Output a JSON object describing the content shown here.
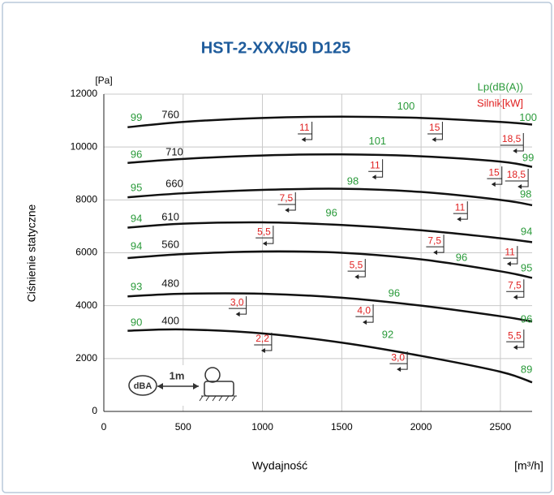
{
  "chart_data": {
    "type": "line",
    "title": "HST-2-XXX/50 D125",
    "y_unit": "[Pa]",
    "ylabel": "Ciśnienie statyczne",
    "xlabel": "Wydajność",
    "x_unit": "[m³/h]",
    "legend": [
      {
        "text": "Lp(dB(A))",
        "color": "#2a9a3a"
      },
      {
        "text": "Silnik[kW]",
        "color": "#e02020"
      }
    ],
    "xlim": [
      0,
      2700
    ],
    "xticks": [
      0,
      500,
      1000,
      1500,
      2000,
      2500
    ],
    "ylim": [
      0,
      12000
    ],
    "yticks": [
      0,
      2000,
      4000,
      6000,
      8000,
      10000,
      12000
    ],
    "grid": true,
    "line_color": "#111111",
    "x": [
      150,
      500,
      1000,
      1500,
      2000,
      2500,
      2700
    ],
    "series": [
      {
        "values": [
          10750,
          10950,
          11100,
          11150,
          11100,
          10950,
          10850
        ]
      },
      {
        "values": [
          9400,
          9550,
          9680,
          9720,
          9650,
          9450,
          9250
        ]
      },
      {
        "values": [
          8100,
          8250,
          8380,
          8420,
          8300,
          8000,
          7800
        ]
      },
      {
        "values": [
          6950,
          7100,
          7150,
          7050,
          6850,
          6550,
          6400
        ]
      },
      {
        "values": [
          5800,
          5950,
          6050,
          6000,
          5750,
          5300,
          5050
        ]
      },
      {
        "values": [
          4350,
          4450,
          4450,
          4300,
          4000,
          3600,
          3400
        ]
      },
      {
        "values": [
          3050,
          3100,
          2950,
          2600,
          2100,
          1500,
          1100
        ]
      }
    ],
    "speed_labels": {
      "color": "#111111",
      "items": [
        {
          "text": "760",
          "x": 420,
          "y": 11200
        },
        {
          "text": "710",
          "x": 445,
          "y": 9790
        },
        {
          "text": "660",
          "x": 445,
          "y": 8590
        },
        {
          "text": "610",
          "x": 420,
          "y": 7330
        },
        {
          "text": "560",
          "x": 420,
          "y": 6290
        },
        {
          "text": "480",
          "x": 420,
          "y": 4820
        },
        {
          "text": "400",
          "x": 420,
          "y": 3400
        }
      ]
    },
    "db_labels": {
      "color": "#2a9a3a",
      "items": [
        {
          "text": "99",
          "x": 205,
          "y": 11100
        },
        {
          "text": "96",
          "x": 205,
          "y": 9690
        },
        {
          "text": "95",
          "x": 205,
          "y": 8440
        },
        {
          "text": "94",
          "x": 205,
          "y": 7270
        },
        {
          "text": "94",
          "x": 205,
          "y": 6230
        },
        {
          "text": "93",
          "x": 205,
          "y": 4690
        },
        {
          "text": "90",
          "x": 205,
          "y": 3340
        },
        {
          "text": "100",
          "x": 1905,
          "y": 11530
        },
        {
          "text": "100",
          "x": 2675,
          "y": 11100
        },
        {
          "text": "101",
          "x": 1725,
          "y": 10210
        },
        {
          "text": "99",
          "x": 2675,
          "y": 9570
        },
        {
          "text": "98",
          "x": 1570,
          "y": 8680
        },
        {
          "text": "98",
          "x": 2660,
          "y": 8190
        },
        {
          "text": "96",
          "x": 1435,
          "y": 7480
        },
        {
          "text": "94",
          "x": 2665,
          "y": 6780
        },
        {
          "text": "96",
          "x": 2255,
          "y": 5800
        },
        {
          "text": "95",
          "x": 2665,
          "y": 5400
        },
        {
          "text": "96",
          "x": 1830,
          "y": 4450
        },
        {
          "text": "96",
          "x": 2665,
          "y": 3470
        },
        {
          "text": "92",
          "x": 1790,
          "y": 2880
        },
        {
          "text": "89",
          "x": 2665,
          "y": 1560
        }
      ]
    },
    "kw_labels": {
      "color": "#e02020",
      "items": [
        {
          "text": "11",
          "x": 1265,
          "y": 10710
        },
        {
          "text": "15",
          "x": 2085,
          "y": 10710
        },
        {
          "text": "18,5",
          "x": 2570,
          "y": 10280
        },
        {
          "text": "11",
          "x": 1710,
          "y": 9290
        },
        {
          "text": "15",
          "x": 2460,
          "y": 9020
        },
        {
          "text": "18,5",
          "x": 2600,
          "y": 8930
        },
        {
          "text": "7,5",
          "x": 1150,
          "y": 8040
        },
        {
          "text": "11",
          "x": 2245,
          "y": 7700
        },
        {
          "text": "5,5",
          "x": 1010,
          "y": 6780
        },
        {
          "text": "7,5",
          "x": 2085,
          "y": 6440
        },
        {
          "text": "11",
          "x": 2560,
          "y": 6010
        },
        {
          "text": "5,5",
          "x": 1590,
          "y": 5520
        },
        {
          "text": "7,5",
          "x": 2590,
          "y": 4750
        },
        {
          "text": "3,0",
          "x": 840,
          "y": 4110
        },
        {
          "text": "4,0",
          "x": 1640,
          "y": 3800
        },
        {
          "text": "5,5",
          "x": 2590,
          "y": 2850
        },
        {
          "text": "2,2",
          "x": 1000,
          "y": 2730
        },
        {
          "text": "3,0",
          "x": 1855,
          "y": 2020
        }
      ]
    },
    "inset": {
      "badge": "dBA",
      "distance": "1m"
    }
  }
}
